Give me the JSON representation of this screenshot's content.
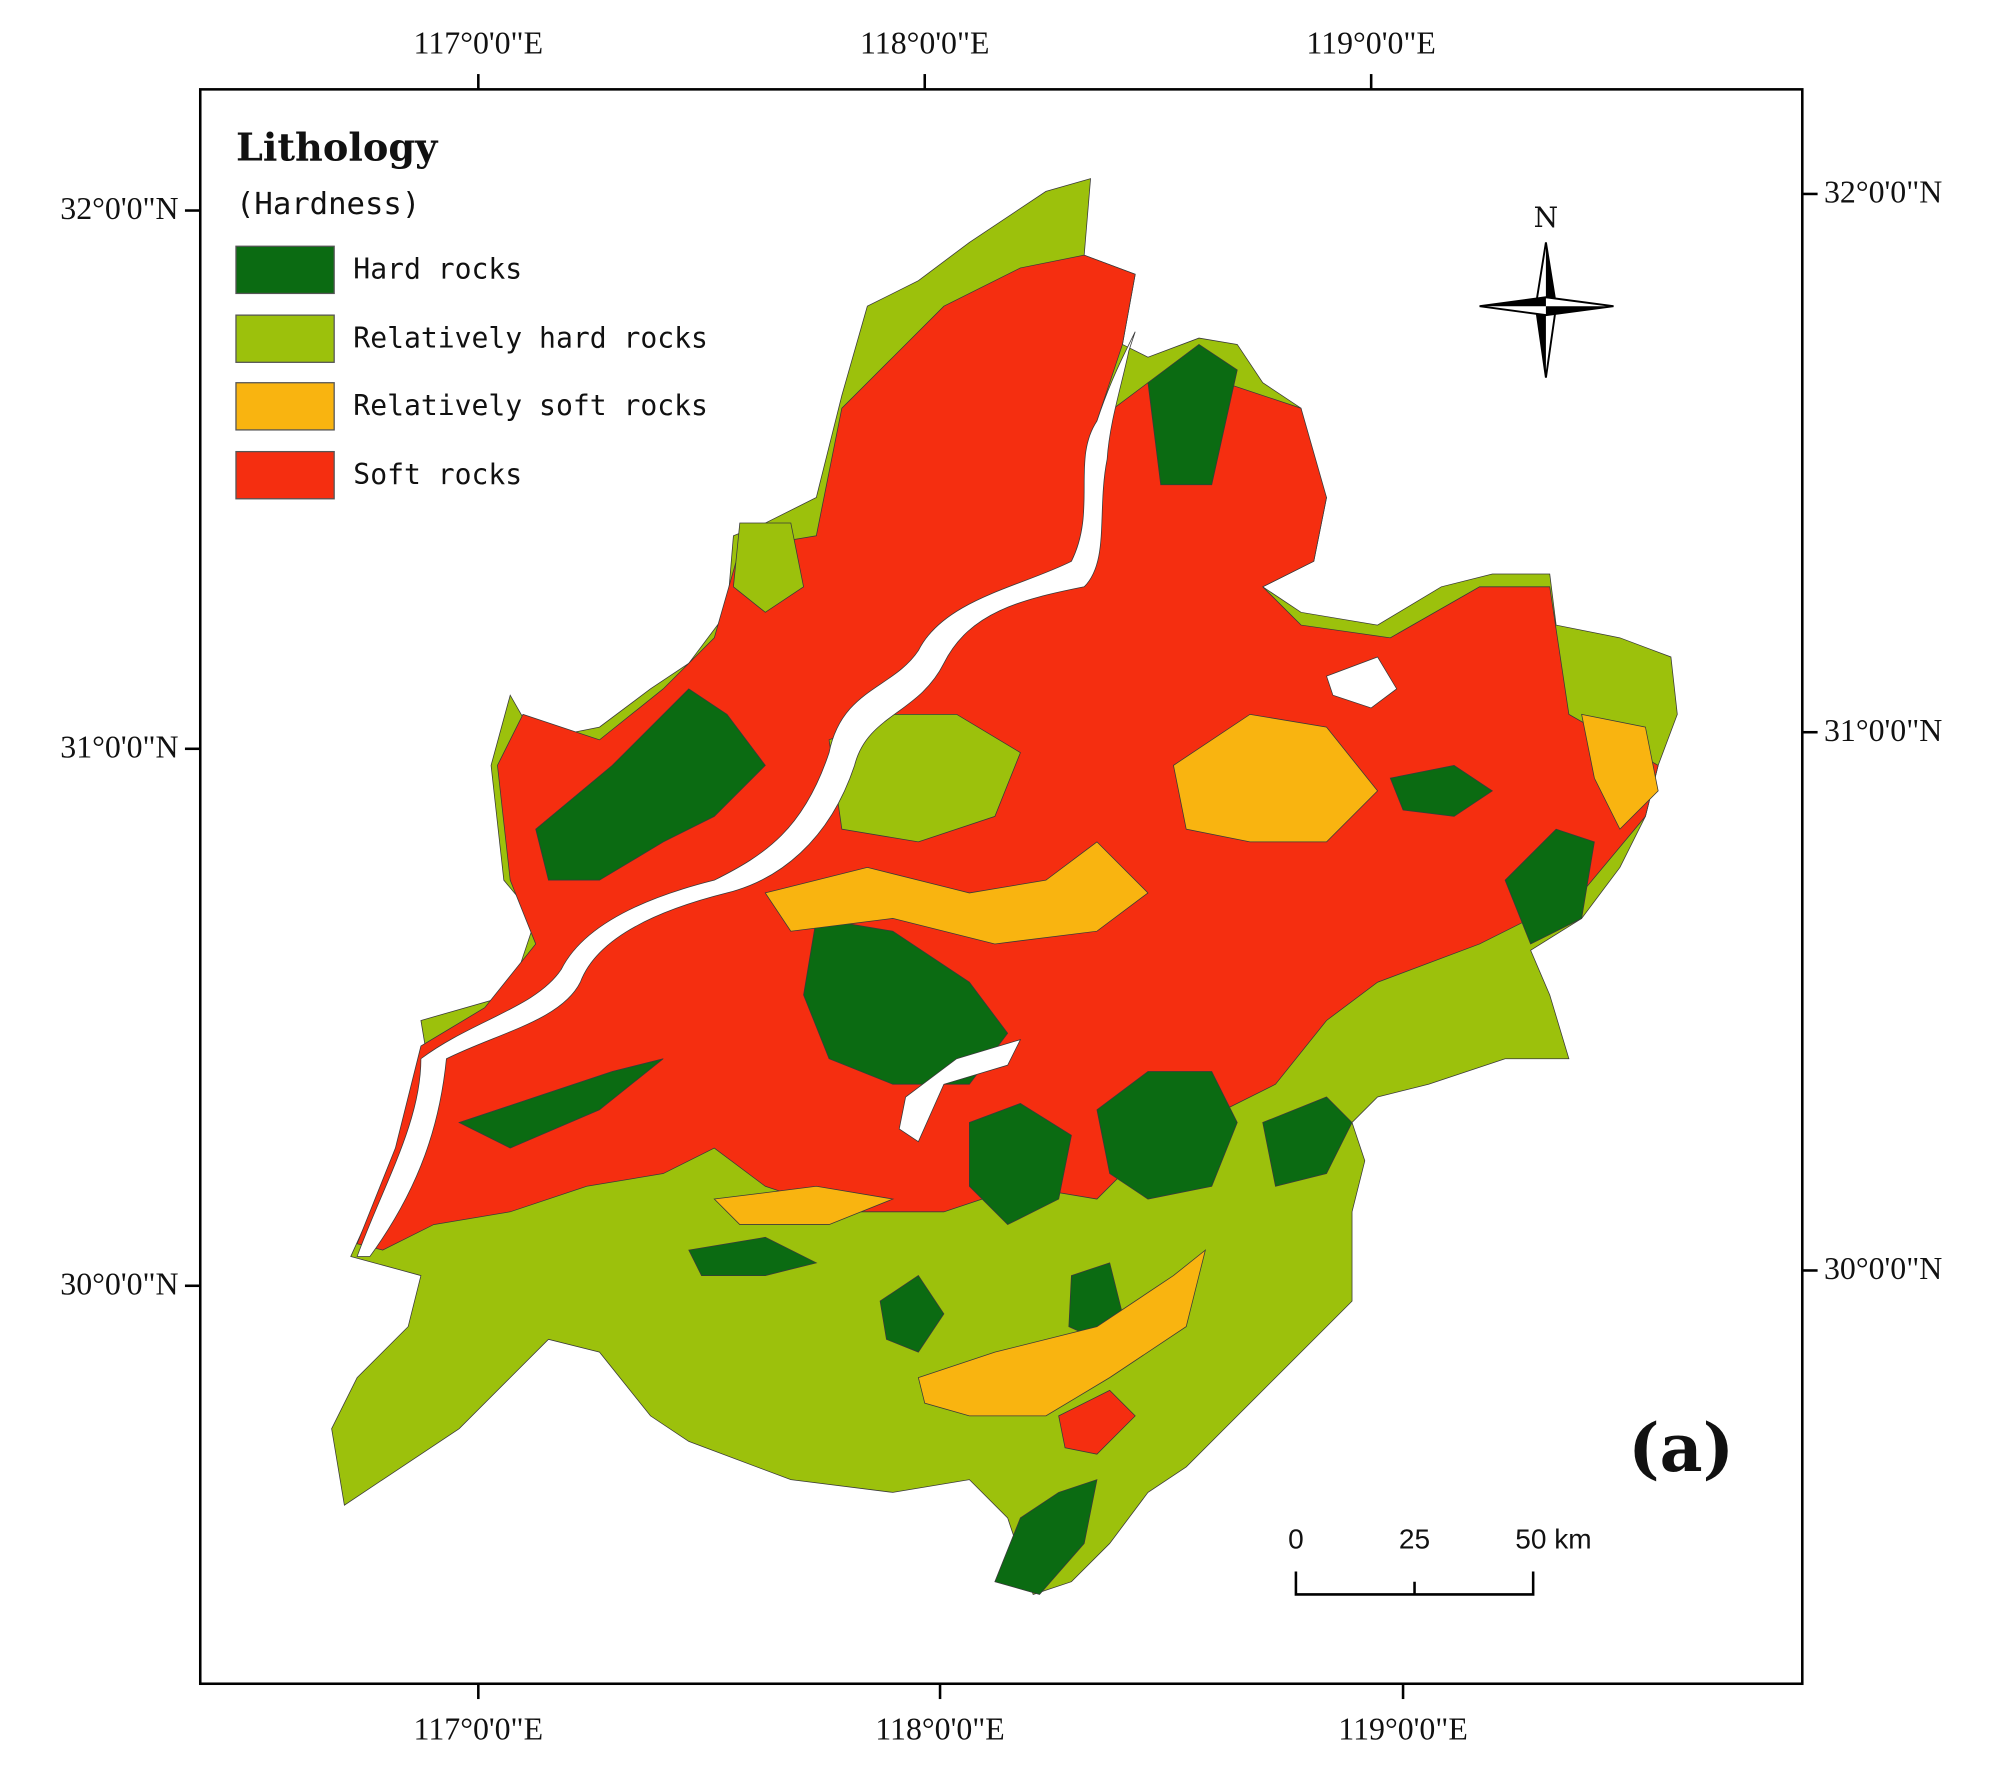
{
  "legend": {
    "title": "Lithology",
    "subtitle": "(Hardness)",
    "items": [
      {
        "label": "Hard rocks",
        "color": "#0b6b12"
      },
      {
        "label": "Relatively hard rocks",
        "color": "#9cc10c"
      },
      {
        "label": "Relatively soft rocks",
        "color": "#f9b410"
      },
      {
        "label": "Soft rocks",
        "color": "#f52e10"
      }
    ]
  },
  "graticule": {
    "top": [
      "117°0'0\"E",
      "118°0'0\"E",
      "119°0'0\"E"
    ],
    "bottom": [
      "117°0'0\"E",
      "118°0'0\"E",
      "119°0'0\"E"
    ],
    "left": [
      "32°0'0\"N",
      "31°0'0\"N",
      "30°0'0\"N"
    ],
    "right": [
      "32°0'0\"N",
      "31°0'0\"N",
      "30°0'0\"N"
    ]
  },
  "north_arrow": {
    "label": "N"
  },
  "scale_bar": {
    "labels": [
      "0",
      "25",
      "50 km"
    ]
  },
  "panel_label": "(a)"
}
